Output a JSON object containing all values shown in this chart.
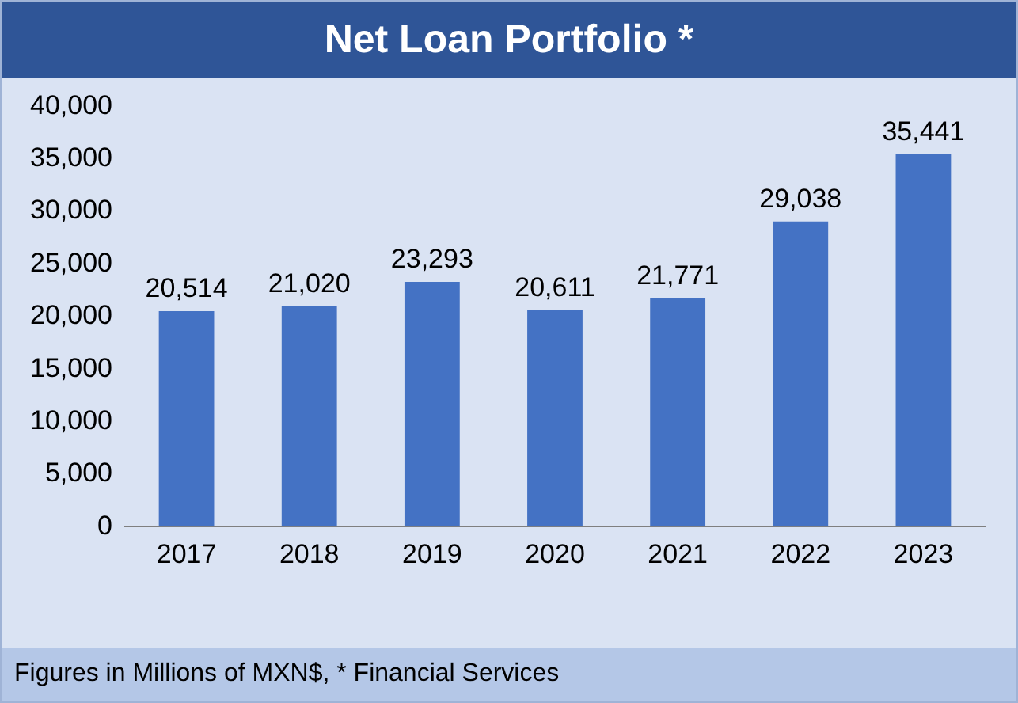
{
  "chart_data": {
    "type": "bar",
    "title": "Net Loan Portfolio *",
    "categories": [
      "2017",
      "2018",
      "2019",
      "2020",
      "2021",
      "2022",
      "2023"
    ],
    "values": [
      20514,
      21020,
      23293,
      20611,
      21771,
      29038,
      35441
    ],
    "value_labels": [
      "20,514",
      "21,020",
      "23,293",
      "20,611",
      "21,771",
      "29,038",
      "35,441"
    ],
    "color": "#4472c4",
    "ylim": [
      0,
      40000
    ],
    "yticks": [
      {
        "value": 0,
        "label": "0"
      },
      {
        "value": 5000,
        "label": "5,000"
      },
      {
        "value": 10000,
        "label": "10,000"
      },
      {
        "value": 15000,
        "label": "15,000"
      },
      {
        "value": 20000,
        "label": "20,000"
      },
      {
        "value": 25000,
        "label": "25,000"
      },
      {
        "value": 30000,
        "label": "30,000"
      },
      {
        "value": 35000,
        "label": "35,000"
      },
      {
        "value": 40000,
        "label": "40,000"
      }
    ],
    "grid": false,
    "legend": false,
    "annotations": [
      "Figures in Millions of MXN$, * Financial Services"
    ]
  }
}
